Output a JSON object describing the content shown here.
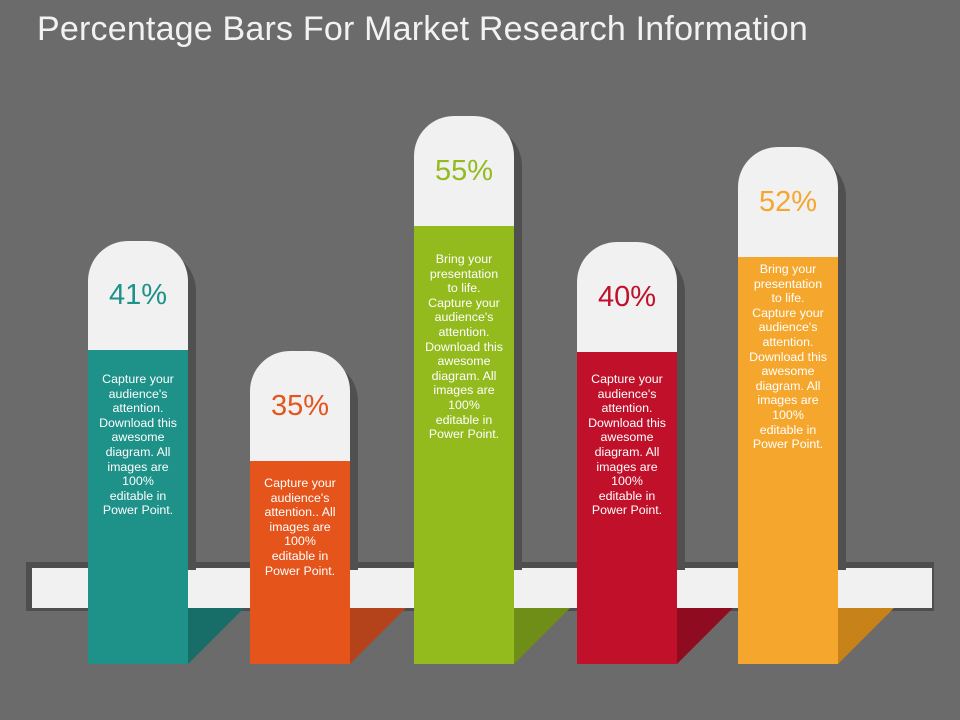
{
  "title": "Percentage Bars For Market Research Information",
  "bars": [
    {
      "value": "41%",
      "color": "#1e9189",
      "dark": "#176d67",
      "text": "Capture your audience's attention. Download this awesome diagram. All images are 100% editable in Power Point."
    },
    {
      "value": "35%",
      "color": "#e5541b",
      "dark": "#b4421a",
      "text": "Capture your audience's attention.. All images are 100% editable in Power Point."
    },
    {
      "value": "55%",
      "color": "#93bb1e",
      "dark": "#6f8e17",
      "text": "Bring your presentation to life. Capture your audience's attention. Download this awesome diagram. All images are 100% editable in Power Point."
    },
    {
      "value": "40%",
      "color": "#c0102a",
      "dark": "#8f0c20",
      "text": "Capture your audience's attention. Download this awesome diagram. All images are 100% editable in Power Point."
    },
    {
      "value": "52%",
      "color": "#f5a72d",
      "dark": "#c7821a",
      "text": "Bring your presentation to life. Capture your audience's attention. Download this awesome diagram. All images are 100% editable in Power Point."
    }
  ]
}
